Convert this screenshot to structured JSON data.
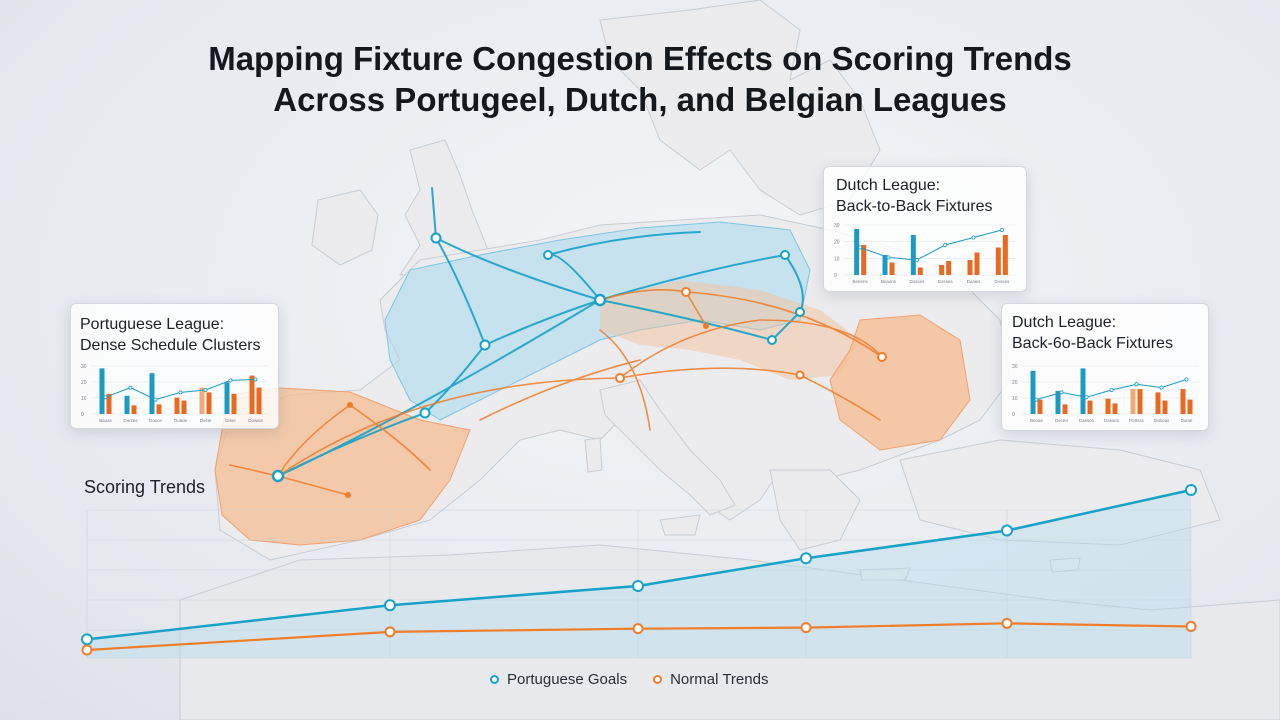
{
  "title": {
    "line1": "Mapping Fixture Congestion Effects on Scoring Trends",
    "line2": "Across Portugeel, Dutch, and Belgian Leagues"
  },
  "colors": {
    "blue": "#17a2c8",
    "orange": "#f07d2a",
    "blue_region": "#a9dbef",
    "orange_region": "#f6be93",
    "land": "#ececef",
    "bar_blue": "#1a9cc2",
    "bar_orange": "#e8691f",
    "bar_light_orange": "#f2a978"
  },
  "cards": [
    {
      "id": "portuguese",
      "title_line1": "Portuguese League:",
      "title_line2": "Dense Schedule Clusters",
      "y_ticks": [
        "30",
        "20",
        "10",
        "0"
      ],
      "x_labels": [
        "Bauas",
        "Durzes",
        "Dasce",
        "Duade",
        "Doste",
        "Drise",
        "Dowsis"
      ],
      "pairs": [
        [
          0.95,
          0.42
        ],
        [
          0.38,
          0.18
        ],
        [
          0.85,
          0.2
        ],
        [
          0.34,
          0.28
        ],
        [
          0.55,
          0.45
        ],
        [
          0.66,
          0.42
        ],
        [
          0.8,
          0.55
        ]
      ],
      "pair_colors": [
        "blue",
        "blue",
        "blue",
        "orange",
        "light-orange",
        "blue",
        "orange"
      ],
      "line": [
        0.35,
        0.55,
        0.3,
        0.45,
        0.5,
        0.7,
        0.72
      ]
    },
    {
      "id": "dutch-1",
      "title_line1": "Dutch League:",
      "title_line2": "Back-to-Back Fixtures",
      "y_ticks": [
        "30",
        "20",
        "10",
        "0"
      ],
      "x_labels": [
        "Beeens",
        "Beaons",
        "Dosses",
        "Dosses",
        "Doasis",
        "Dosses"
      ],
      "pairs": [
        [
          0.92,
          0.6
        ],
        [
          0.4,
          0.25
        ],
        [
          0.8,
          0.15
        ],
        [
          0.2,
          0.28
        ],
        [
          0.3,
          0.45
        ],
        [
          0.55,
          0.8
        ]
      ],
      "pair_colors": [
        "blue",
        "blue",
        "blue",
        "orange",
        "orange",
        "orange"
      ],
      "line": [
        0.55,
        0.35,
        0.3,
        0.6,
        0.75,
        0.9
      ]
    },
    {
      "id": "dutch-2",
      "title_line1": "Dutch League:",
      "title_line2": "Back-6o-Back Fixtures",
      "y_ticks": [
        "30",
        "20",
        "10",
        "0"
      ],
      "x_labels": [
        "Beoae",
        "Decen",
        "Dasson",
        "Dasses",
        "Pottsss",
        "Doboas",
        "Doiae"
      ],
      "pairs": [
        [
          0.9,
          0.3
        ],
        [
          0.48,
          0.2
        ],
        [
          0.95,
          0.28
        ],
        [
          0.32,
          0.22
        ],
        [
          0.52,
          0.52
        ],
        [
          0.45,
          0.28
        ],
        [
          0.52,
          0.3
        ]
      ],
      "pair_colors": [
        "blue",
        "blue",
        "blue",
        "orange",
        "light-orange",
        "orange",
        "orange"
      ],
      "line": [
        0.3,
        0.45,
        0.35,
        0.5,
        0.62,
        0.55,
        0.72
      ]
    }
  ],
  "scoring_trends": {
    "label": "Scoring Trends",
    "series": [
      {
        "name": "Portuguese Goals",
        "color": "#17a2c8",
        "values": [
          0.1,
          0.42,
          0.6,
          0.86,
          1.0,
          1.12,
          1.5
        ]
      },
      {
        "name": "Normal Trends",
        "color": "#f07d2a",
        "values": [
          0.0,
          0.17,
          0.2,
          0.21,
          0.22,
          0.25,
          0.22
        ]
      }
    ]
  },
  "map": {
    "hubs": [
      {
        "id": "london",
        "color": "blue"
      },
      {
        "id": "amsterdam",
        "color": "blue"
      },
      {
        "id": "brussels",
        "color": "blue"
      },
      {
        "id": "frankfurt",
        "color": "blue"
      },
      {
        "id": "paris",
        "color": "blue"
      },
      {
        "id": "lyon",
        "color": "blue"
      },
      {
        "id": "lisbon",
        "color": "blue"
      },
      {
        "id": "berlin",
        "color": "blue"
      },
      {
        "id": "vienna",
        "color": "blue"
      },
      {
        "id": "budapest",
        "color": "blue"
      },
      {
        "id": "munich",
        "color": "orange"
      },
      {
        "id": "prague",
        "color": "orange"
      },
      {
        "id": "bucharest",
        "color": "orange"
      },
      {
        "id": "milan",
        "color": "orange"
      },
      {
        "id": "belgrade",
        "color": "orange"
      }
    ]
  }
}
